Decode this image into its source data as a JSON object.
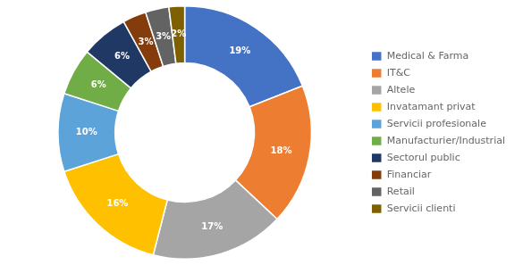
{
  "chart_data": {
    "type": "doughnut",
    "categories": [
      "Medical & Farma",
      "IT&C",
      "Altele",
      "Invatamant privat",
      "Servicii profesionale",
      "Manufacturier/Industrial",
      "Sectorul public",
      "Financiar",
      "Retail",
      "Servicii clienti"
    ],
    "values": [
      19,
      18,
      17,
      16,
      10,
      6,
      6,
      3,
      3,
      2
    ],
    "value_labels": [
      "19%",
      "18%",
      "17%",
      "16%",
      "10%",
      "6%",
      "6%",
      "3%",
      "3%",
      "2%"
    ],
    "colors": [
      "#4472C4",
      "#ED7D31",
      "#A5A5A5",
      "#FFC000",
      "#5BA3D9",
      "#70AD47",
      "#203864",
      "#843C0C",
      "#636363",
      "#7F6000"
    ],
    "data_labels": true,
    "legend": "right"
  }
}
